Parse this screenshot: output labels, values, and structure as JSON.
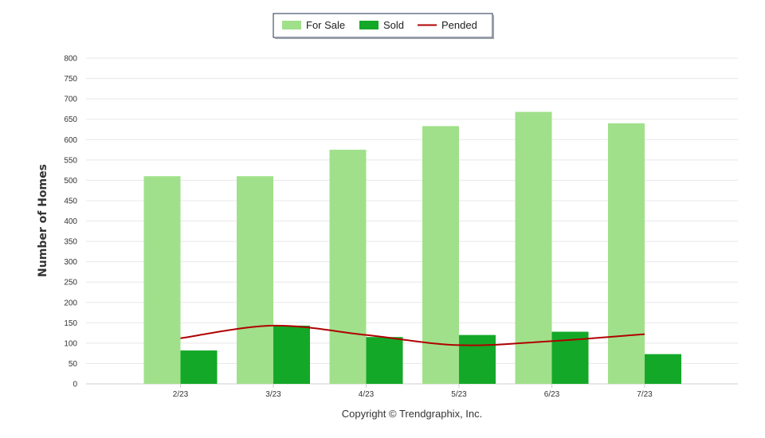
{
  "chart_data": {
    "type": "bar",
    "categories": [
      "2/23",
      "3/23",
      "4/23",
      "5/23",
      "6/23",
      "7/23"
    ],
    "series": [
      {
        "name": "For Sale",
        "kind": "bar",
        "color": "#a0e08a",
        "values": [
          510,
          510,
          575,
          633,
          668,
          640
        ]
      },
      {
        "name": "Sold",
        "kind": "bar",
        "color": "#14a828",
        "values": [
          82,
          143,
          115,
          120,
          128,
          73
        ]
      },
      {
        "name": "Pended",
        "kind": "line",
        "color": "#b00000",
        "values": [
          112,
          143,
          120,
          95,
          105,
          122
        ]
      }
    ],
    "ylabel": "Number of Homes",
    "xlabel": "",
    "ylim": [
      0,
      800
    ],
    "ytick_step": 50,
    "grid": true,
    "legend_position": "top-center"
  },
  "footer": {
    "copyright": "Copyright © Trendgraphix, Inc."
  }
}
